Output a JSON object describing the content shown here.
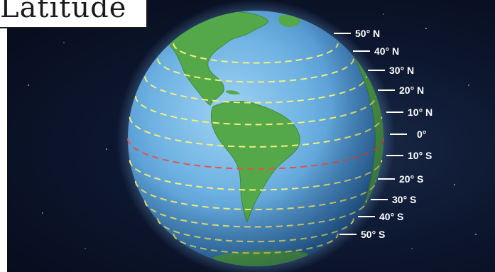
{
  "title": "Latitude",
  "latitude_labels": [
    {
      "lat": 50,
      "text": "50° N"
    },
    {
      "lat": 40,
      "text": "40° N"
    },
    {
      "lat": 30,
      "text": "30° N"
    },
    {
      "lat": 20,
      "text": "20° N"
    },
    {
      "lat": 10,
      "text": "10° N"
    },
    {
      "lat": 0,
      "text": "0°"
    },
    {
      "lat": -10,
      "text": "10° S"
    },
    {
      "lat": -20,
      "text": "20° S"
    },
    {
      "lat": -30,
      "text": "30° S"
    },
    {
      "lat": -40,
      "text": "40° S"
    },
    {
      "lat": -50,
      "text": "50° S"
    }
  ],
  "colors": {
    "ocean": "#5aa0d6",
    "land": "#55a84a",
    "parallel_line": "#f2f07a",
    "equator_line": "#e8504a",
    "label": "#ffffff"
  }
}
